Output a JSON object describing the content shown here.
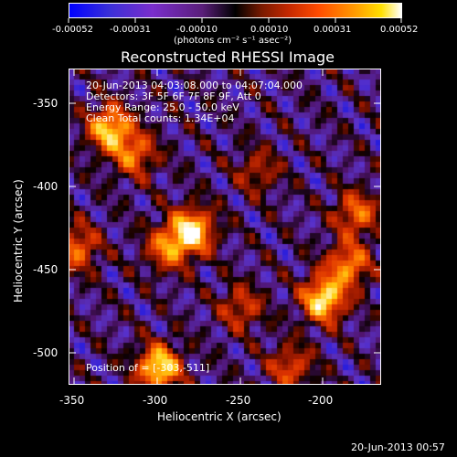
{
  "colorbar": {
    "ticks": [
      "-0.00052",
      "-0.00031",
      "-0.00010",
      "0.00010",
      "0.00031",
      "0.00052"
    ],
    "unit_label": "(photons cm⁻² s⁻¹ asec⁻²)"
  },
  "plot": {
    "title": "Reconstructed RHESSI Image",
    "info_lines": [
      "20-Jun-2013 04:03:08.000 to 04:07:04.000",
      "Detectors: 3F 5F 6F 7F 8F 9F, Att 0",
      "Energy Range: 25.0 - 50.0 keV",
      "Clean      Total counts: 1.34E+04"
    ],
    "position_text": "Position of        = [-303,-511]",
    "xlabel": "Heliocentric X (arcsec)",
    "ylabel": "Heliocentric Y (arcsec)",
    "xticks": [
      "-350",
      "-300",
      "-250",
      "-200"
    ],
    "yticks": [
      "-350",
      "-400",
      "-450",
      "-500"
    ],
    "footer_time": "20-Jun-2013 00:57"
  },
  "chart_data": {
    "type": "heatmap",
    "title": "Reconstructed RHESSI Image",
    "xlabel": "Heliocentric X (arcsec)",
    "ylabel": "Heliocentric Y (arcsec)",
    "xlim": [
      -355,
      -165
    ],
    "ylim": [
      -520,
      -335
    ],
    "colorbar_range": [
      -0.00052,
      0.00052
    ],
    "sources": [
      {
        "x": -330,
        "y": -370,
        "intensity": 0.9
      },
      {
        "x": -315,
        "y": -385,
        "intensity": 0.6
      },
      {
        "x": -280,
        "y": -430,
        "intensity": 1.0
      },
      {
        "x": -295,
        "y": -440,
        "intensity": 0.6
      },
      {
        "x": -350,
        "y": -440,
        "intensity": 0.6
      },
      {
        "x": -200,
        "y": -470,
        "intensity": 1.0
      },
      {
        "x": -185,
        "y": -450,
        "intensity": 0.7
      },
      {
        "x": -180,
        "y": -420,
        "intensity": 0.6
      },
      {
        "x": -300,
        "y": -510,
        "intensity": 1.0
      },
      {
        "x": -250,
        "y": -475,
        "intensity": 0.45
      },
      {
        "x": -220,
        "y": -510,
        "intensity": 0.5
      },
      {
        "x": -240,
        "y": -395,
        "intensity": 0.35
      }
    ]
  }
}
